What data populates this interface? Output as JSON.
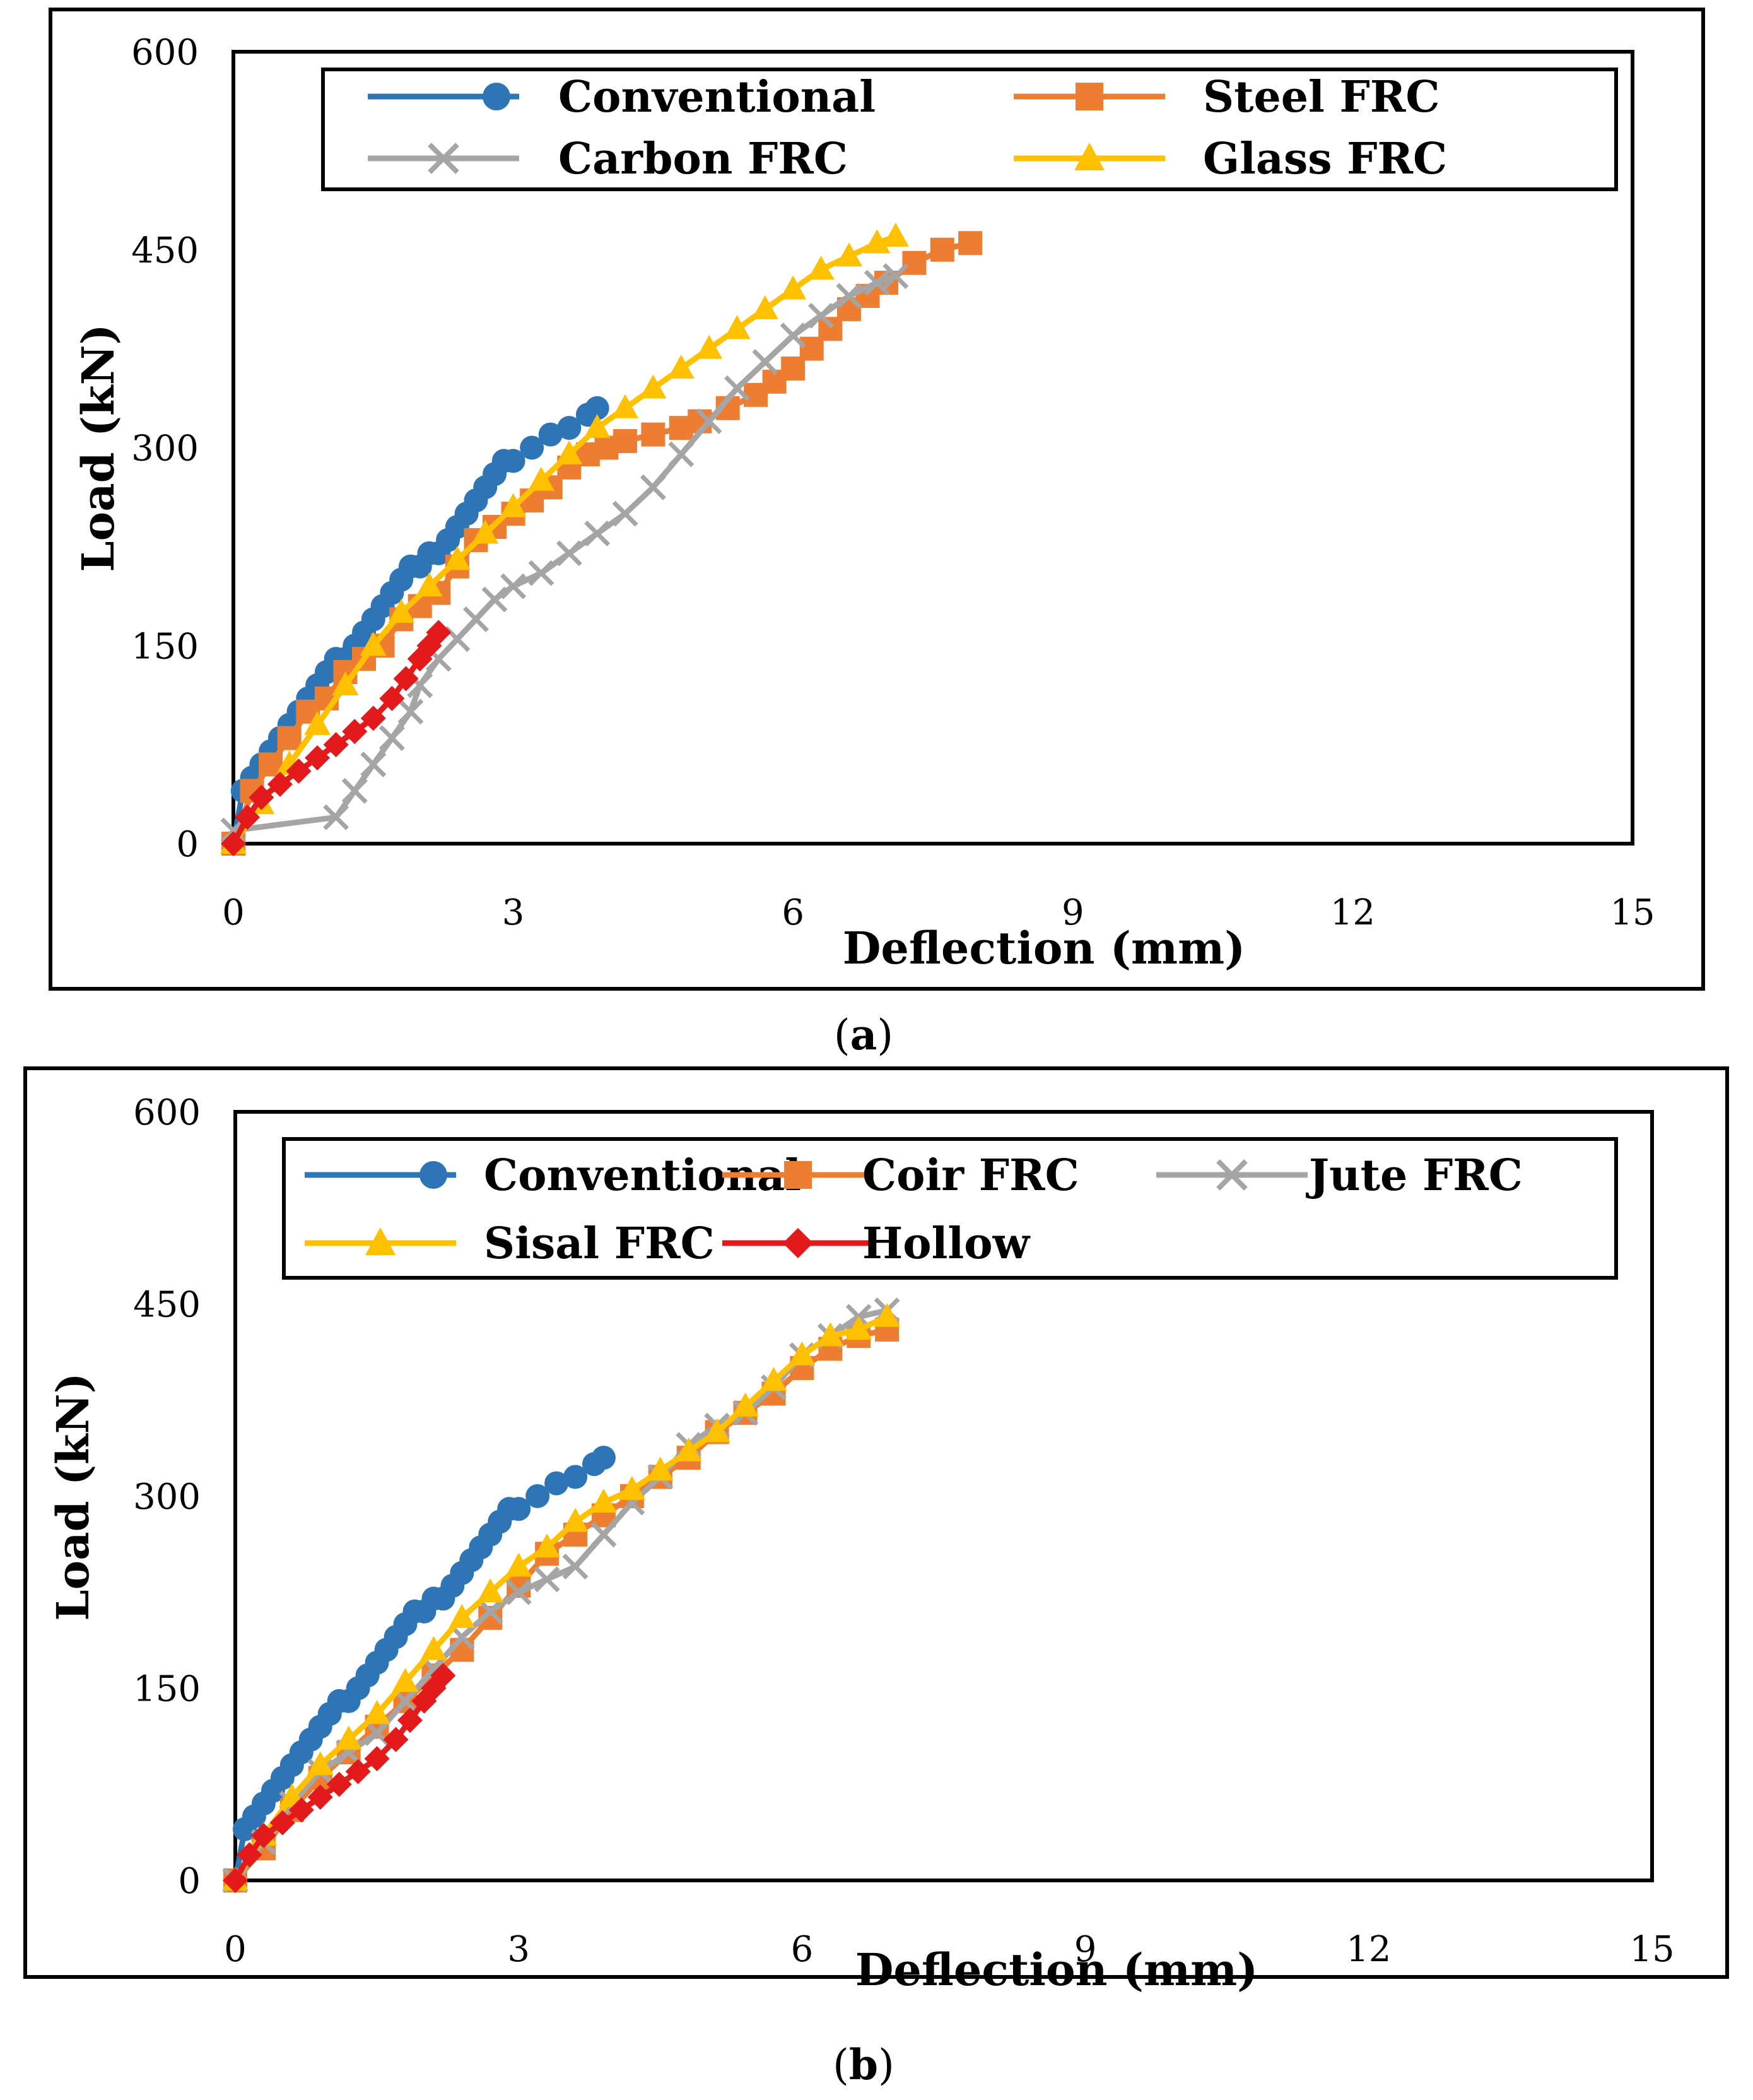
{
  "chart_data": [
    {
      "type": "line",
      "panel": "a",
      "caption_label": "a",
      "xlabel": "Deflection (mm)",
      "ylabel": "Load (kN)",
      "xlim": [
        0,
        15
      ],
      "ylim": [
        0,
        600
      ],
      "xticks": [
        0,
        3,
        6,
        9,
        12,
        15
      ],
      "yticks": [
        0,
        150,
        300,
        450,
        600
      ],
      "legend_position": "top",
      "legend_columns": 2,
      "series": [
        {
          "name": "Conventional",
          "color": "#2e75b6",
          "marker": "circle",
          "x": [
            0,
            0.1,
            0.2,
            0.3,
            0.4,
            0.5,
            0.6,
            0.7,
            0.8,
            0.9,
            1.0,
            1.1,
            1.2,
            1.3,
            1.4,
            1.5,
            1.6,
            1.7,
            1.8,
            1.9,
            2.0,
            2.1,
            2.2,
            2.3,
            2.4,
            2.5,
            2.6,
            2.7,
            2.8,
            2.9,
            3.0,
            3.2,
            3.4,
            3.6,
            3.8,
            3.9
          ],
          "y": [
            0,
            40,
            50,
            60,
            70,
            80,
            90,
            100,
            110,
            120,
            130,
            140,
            140,
            150,
            160,
            170,
            180,
            190,
            200,
            210,
            210,
            220,
            220,
            230,
            240,
            250,
            260,
            270,
            280,
            290,
            290,
            300,
            310,
            315,
            325,
            330
          ]
        },
        {
          "name": "Steel FRC",
          "color": "#ed7d31",
          "marker": "square",
          "x": [
            0,
            0.2,
            0.4,
            0.6,
            0.8,
            1.0,
            1.2,
            1.4,
            1.6,
            1.8,
            2.0,
            2.2,
            2.4,
            2.6,
            2.8,
            3.0,
            3.2,
            3.4,
            3.6,
            3.8,
            4.0,
            4.2,
            4.5,
            4.8,
            5.0,
            5.3,
            5.6,
            5.8,
            6.0,
            6.2,
            6.4,
            6.6,
            6.8,
            7.0,
            7.3,
            7.6,
            7.9
          ],
          "y": [
            0,
            40,
            60,
            80,
            100,
            110,
            130,
            140,
            150,
            170,
            180,
            190,
            210,
            230,
            240,
            250,
            260,
            270,
            285,
            295,
            300,
            305,
            310,
            315,
            320,
            330,
            340,
            350,
            360,
            375,
            390,
            405,
            415,
            425,
            440,
            450,
            455
          ]
        },
        {
          "name": "Carbon FRC",
          "color": "#a5a5a5",
          "marker": "x",
          "x": [
            0,
            1.1,
            1.3,
            1.5,
            1.7,
            1.9,
            2.0,
            2.2,
            2.4,
            2.6,
            2.8,
            3.0,
            3.3,
            3.6,
            3.9,
            4.2,
            4.5,
            4.8,
            5.1,
            5.4,
            5.7,
            6.0,
            6.3,
            6.6,
            6.9,
            7.1
          ],
          "y": [
            10,
            20,
            40,
            60,
            80,
            100,
            120,
            140,
            155,
            170,
            185,
            195,
            205,
            220,
            235,
            250,
            270,
            295,
            320,
            345,
            365,
            385,
            400,
            415,
            425,
            430
          ]
        },
        {
          "name": "Glass FRC",
          "color": "#ffc000",
          "marker": "triangle",
          "x": [
            0,
            0.3,
            0.6,
            0.9,
            1.2,
            1.5,
            1.8,
            2.1,
            2.4,
            2.7,
            3.0,
            3.3,
            3.6,
            3.9,
            4.2,
            4.5,
            4.8,
            5.1,
            5.4,
            5.7,
            6.0,
            6.3,
            6.6,
            6.9,
            7.1
          ],
          "y": [
            0,
            30,
            60,
            90,
            120,
            150,
            175,
            195,
            215,
            235,
            255,
            275,
            295,
            315,
            330,
            345,
            360,
            375,
            390,
            405,
            420,
            435,
            445,
            455,
            460
          ]
        },
        {
          "name": "Hollow",
          "color": "#e31a1c",
          "marker": "diamond",
          "in_legend": false,
          "x": [
            0,
            0.15,
            0.3,
            0.5,
            0.7,
            0.9,
            1.1,
            1.3,
            1.5,
            1.7,
            1.85,
            2.0,
            2.1,
            2.2
          ],
          "y": [
            0,
            20,
            35,
            45,
            55,
            65,
            75,
            85,
            95,
            110,
            125,
            140,
            150,
            160
          ]
        }
      ]
    },
    {
      "type": "line",
      "panel": "b",
      "caption_label": "b",
      "xlabel": "Deflection (mm)",
      "ylabel": "Load (kN)",
      "xlim": [
        0,
        15
      ],
      "ylim": [
        0,
        600
      ],
      "xticks": [
        0,
        3,
        6,
        9,
        12,
        15
      ],
      "yticks": [
        0,
        150,
        300,
        450,
        600
      ],
      "legend_position": "top",
      "legend_columns": 3,
      "series": [
        {
          "name": "Conventional",
          "color": "#2e75b6",
          "marker": "circle",
          "x": [
            0,
            0.1,
            0.2,
            0.3,
            0.4,
            0.5,
            0.6,
            0.7,
            0.8,
            0.9,
            1.0,
            1.1,
            1.2,
            1.3,
            1.4,
            1.5,
            1.6,
            1.7,
            1.8,
            1.9,
            2.0,
            2.1,
            2.2,
            2.3,
            2.4,
            2.5,
            2.6,
            2.7,
            2.8,
            2.9,
            3.0,
            3.2,
            3.4,
            3.6,
            3.8,
            3.9
          ],
          "y": [
            0,
            40,
            50,
            60,
            70,
            80,
            90,
            100,
            110,
            120,
            130,
            140,
            140,
            150,
            160,
            170,
            180,
            190,
            200,
            210,
            210,
            220,
            220,
            230,
            240,
            250,
            260,
            270,
            280,
            290,
            290,
            300,
            310,
            315,
            325,
            330
          ]
        },
        {
          "name": "Coir FRC",
          "color": "#ed7d31",
          "marker": "square",
          "x": [
            0,
            0.3,
            0.6,
            0.9,
            1.2,
            1.5,
            1.8,
            2.1,
            2.4,
            2.7,
            3.0,
            3.3,
            3.6,
            3.9,
            4.2,
            4.5,
            4.8,
            5.1,
            5.4,
            5.7,
            6.0,
            6.3,
            6.6,
            6.9
          ],
          "y": [
            0,
            25,
            55,
            80,
            100,
            120,
            140,
            160,
            180,
            205,
            230,
            255,
            270,
            285,
            300,
            315,
            330,
            350,
            365,
            380,
            400,
            415,
            425,
            430
          ]
        },
        {
          "name": "Jute FRC",
          "color": "#a5a5a5",
          "marker": "x",
          "x": [
            0,
            0.3,
            0.6,
            0.9,
            1.2,
            1.5,
            1.8,
            2.1,
            2.4,
            2.7,
            3.0,
            3.3,
            3.6,
            3.9,
            4.2,
            4.5,
            4.8,
            5.1,
            5.4,
            5.7,
            6.0,
            6.3,
            6.6,
            6.9
          ],
          "y": [
            0,
            30,
            60,
            85,
            100,
            115,
            140,
            165,
            190,
            210,
            225,
            235,
            245,
            270,
            295,
            315,
            340,
            355,
            365,
            385,
            410,
            425,
            440,
            445
          ]
        },
        {
          "name": "Sisal FRC",
          "color": "#ffc000",
          "marker": "triangle",
          "x": [
            0,
            0.3,
            0.6,
            0.9,
            1.2,
            1.5,
            1.8,
            2.1,
            2.4,
            2.7,
            3.0,
            3.3,
            3.6,
            3.9,
            4.2,
            4.5,
            4.8,
            5.1,
            5.4,
            5.7,
            6.0,
            6.3,
            6.6,
            6.9
          ],
          "y": [
            0,
            35,
            65,
            90,
            110,
            130,
            155,
            180,
            205,
            225,
            245,
            260,
            280,
            295,
            305,
            320,
            335,
            350,
            370,
            390,
            410,
            425,
            430,
            440
          ]
        },
        {
          "name": "Hollow",
          "color": "#e31a1c",
          "marker": "diamond",
          "x": [
            0,
            0.15,
            0.3,
            0.5,
            0.7,
            0.9,
            1.1,
            1.3,
            1.5,
            1.7,
            1.85,
            2.0,
            2.1,
            2.2
          ],
          "y": [
            0,
            20,
            35,
            45,
            55,
            65,
            75,
            85,
            95,
            110,
            125,
            140,
            150,
            160
          ]
        }
      ]
    }
  ]
}
